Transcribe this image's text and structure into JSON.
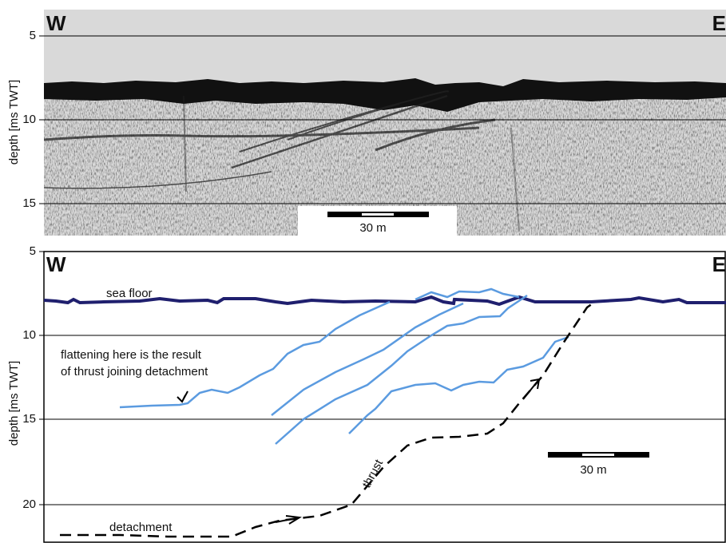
{
  "panels": [
    {
      "left_label": "W",
      "right_label": "E",
      "y_axis_label": "depth [ms TWT]",
      "yticks": [
        5,
        10,
        15
      ],
      "scale_bar": "30 m"
    },
    {
      "left_label": "W",
      "right_label": "E",
      "y_axis_label": "depth [ms TWT]",
      "yticks": [
        5,
        10,
        15,
        20
      ],
      "scale_bar": "30 m",
      "annotations": {
        "sea_floor": "sea floor",
        "flattening": [
          "flattening here is the result",
          "of thrust joining detachment"
        ],
        "thrust": "thrust",
        "detachment": "detachment"
      }
    }
  ]
}
